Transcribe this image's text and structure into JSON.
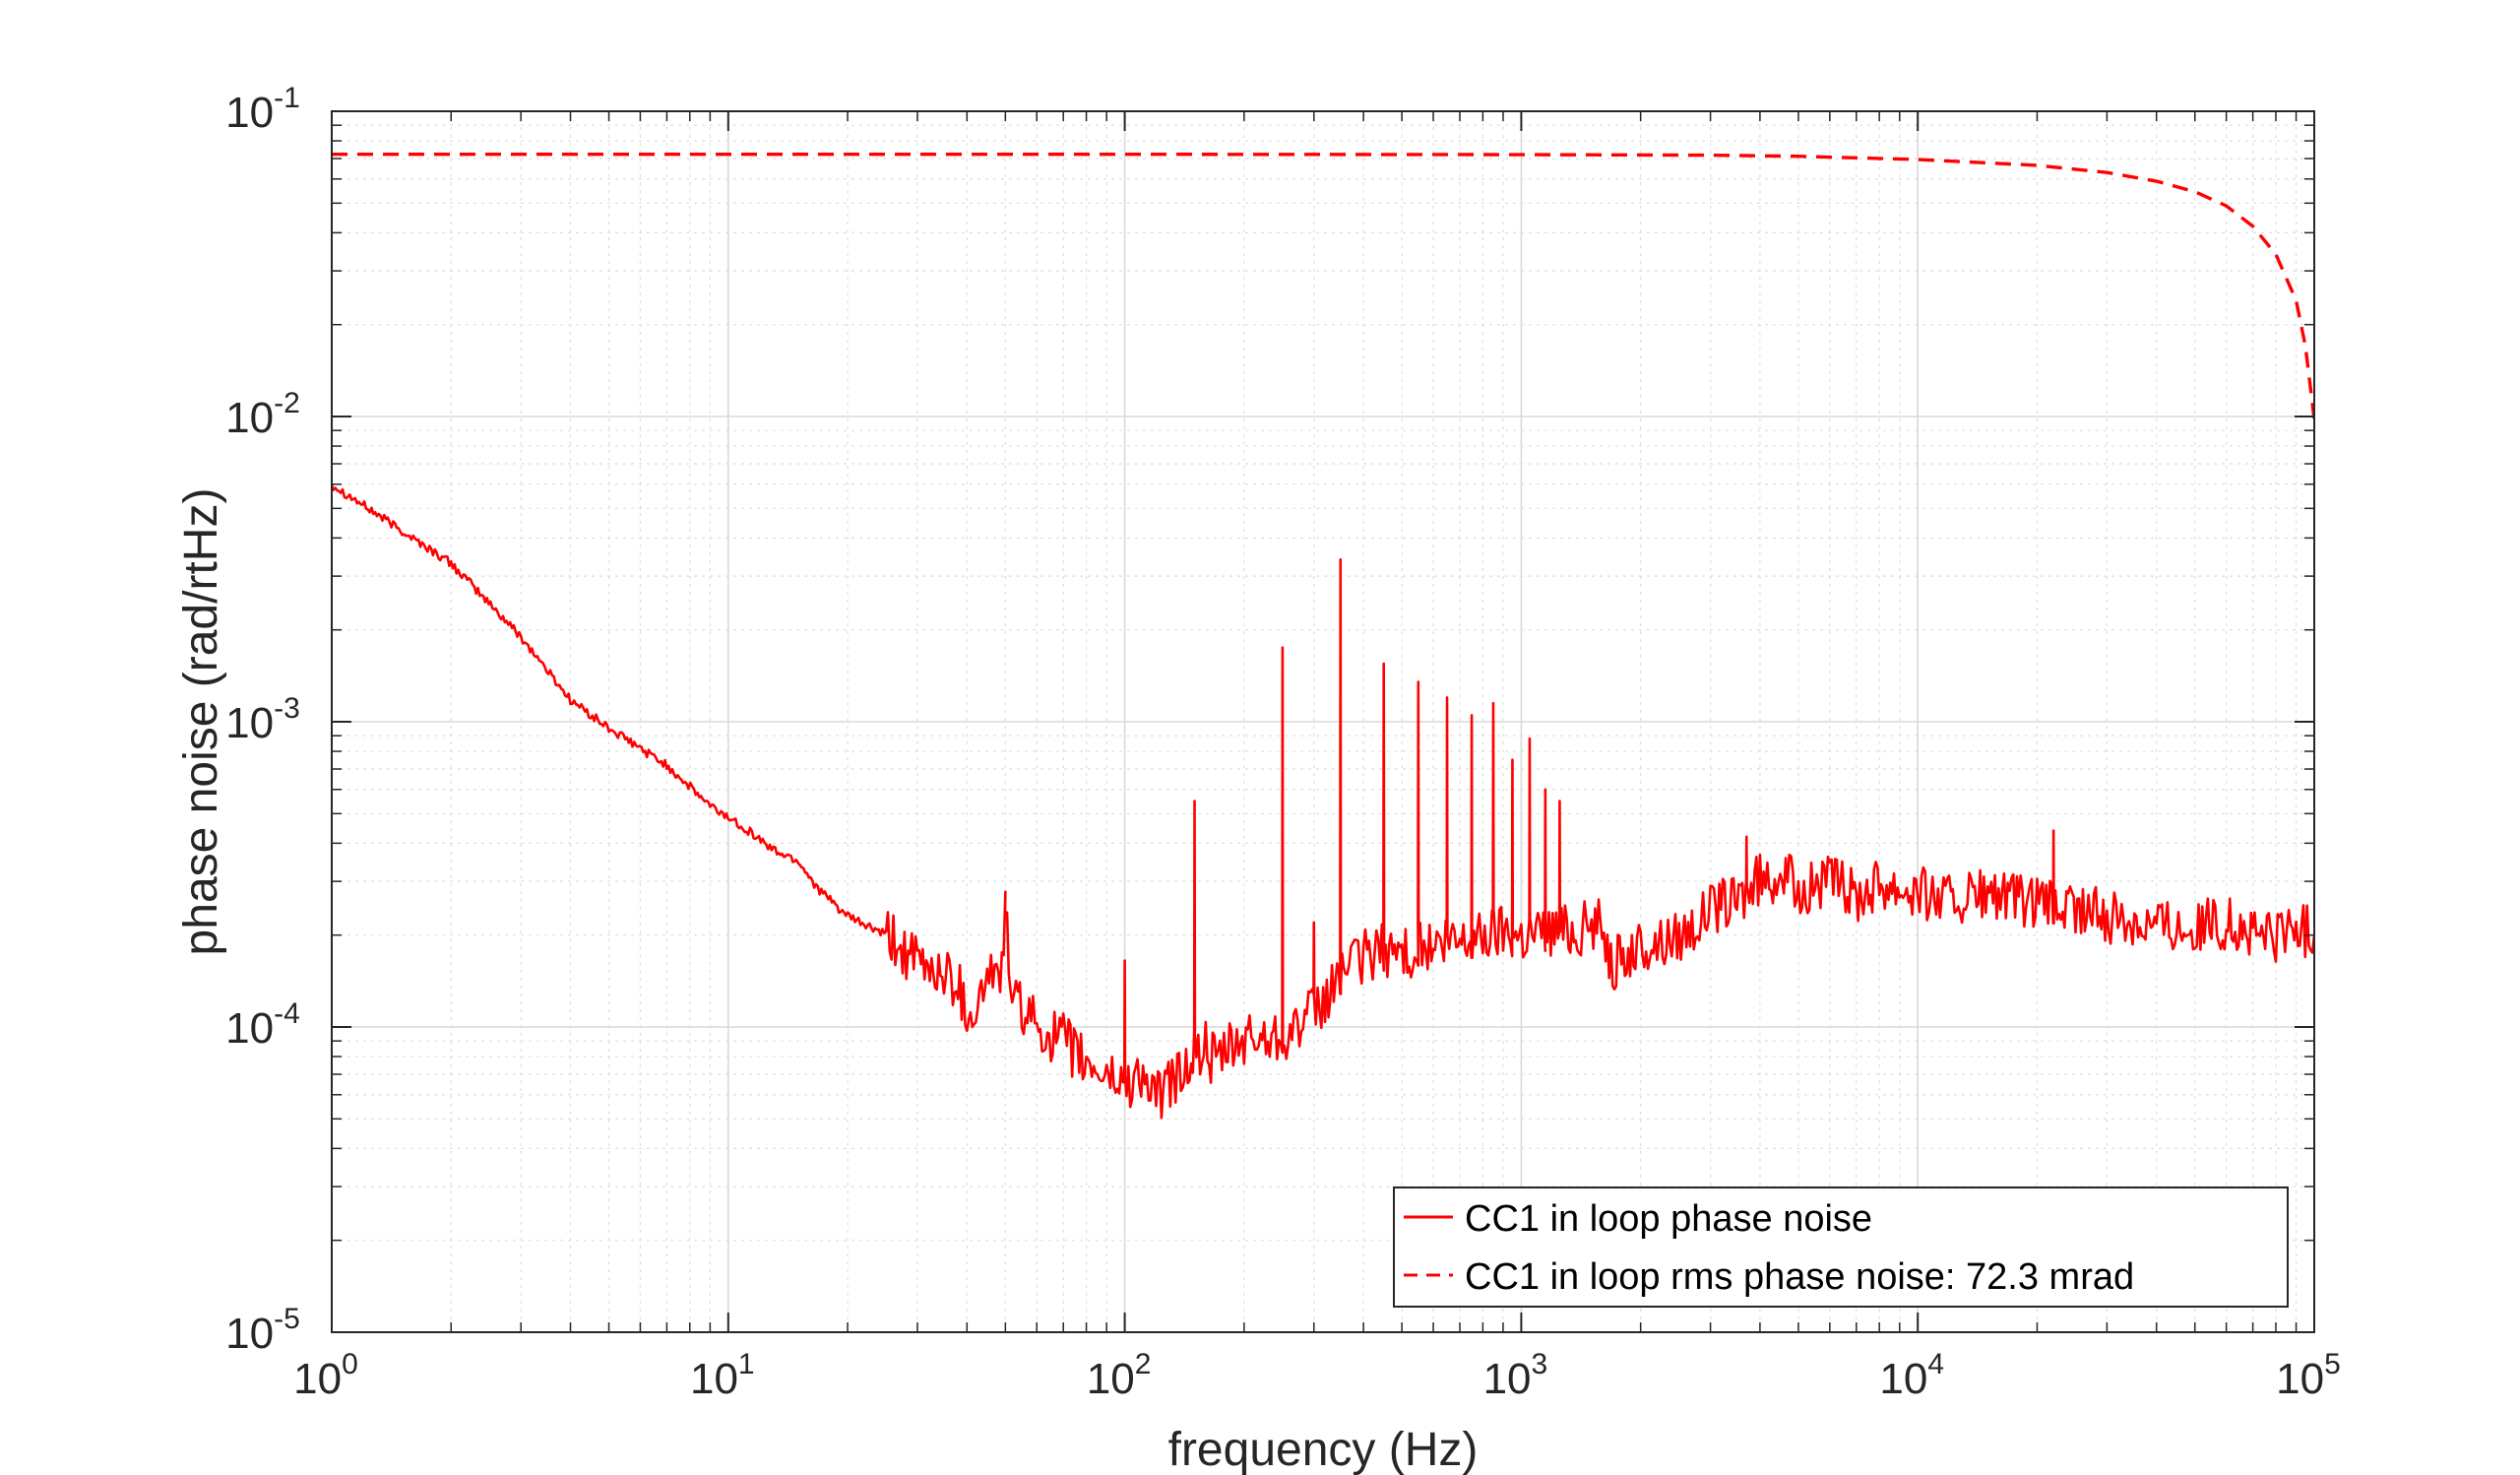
{
  "chart_data": {
    "type": "line",
    "x_scale": "log",
    "y_scale": "log",
    "xlim": [
      1,
      100000
    ],
    "ylim": [
      1e-05,
      0.1
    ],
    "xlabel": "frequency (Hz)",
    "ylabel": "phase noise (rad/rtHz)",
    "x_ticks": [
      {
        "base": "10",
        "exp": "0",
        "value": 1
      },
      {
        "base": "10",
        "exp": "1",
        "value": 10
      },
      {
        "base": "10",
        "exp": "2",
        "value": 100
      },
      {
        "base": "10",
        "exp": "3",
        "value": 1000
      },
      {
        "base": "10",
        "exp": "4",
        "value": 10000
      },
      {
        "base": "10",
        "exp": "5",
        "value": 100000
      }
    ],
    "y_ticks": [
      {
        "base": "10",
        "exp": "-1",
        "value": 0.1
      },
      {
        "base": "10",
        "exp": "-2",
        "value": 0.01
      },
      {
        "base": "10",
        "exp": "-3",
        "value": 0.001
      },
      {
        "base": "10",
        "exp": "-4",
        "value": 0.0001
      },
      {
        "base": "10",
        "exp": "-5",
        "value": 1e-05
      }
    ],
    "grid": true,
    "minor_grid": true,
    "legend_position": "bottom-right",
    "series": [
      {
        "name": "CC1 in loop phase noise",
        "color": "#ff0000",
        "style": "solid",
        "x": [
          1,
          2,
          3,
          4,
          5,
          7,
          9,
          11,
          13,
          15,
          17,
          20,
          25,
          30,
          35,
          38,
          40,
          43,
          46,
          48,
          50,
          52,
          55,
          60,
          70,
          80,
          90,
          100,
          110,
          120,
          140,
          150,
          160,
          170,
          180,
          200,
          220,
          250,
          270,
          300,
          320,
          340,
          350,
          360,
          380,
          400,
          450,
          500,
          550,
          600,
          700,
          800,
          900,
          1000,
          1200,
          1400,
          1600,
          1700,
          2000,
          2500,
          3000,
          3500,
          4000,
          4500,
          5000,
          6000,
          7000,
          8000,
          10000,
          12000,
          15000,
          20000,
          25000,
          30000,
          40000,
          50000,
          60000,
          70000,
          80000,
          90000,
          100000
        ],
        "y": [
          0.006,
          0.0033,
          0.0019,
          0.00118,
          0.00095,
          0.00072,
          0.00053,
          0.00045,
          0.00038,
          0.00035,
          0.00028,
          0.00023,
          0.0002,
          0.00016,
          0.00015,
          0.00014,
          0.00011,
          0.00012,
          0.00016,
          0.00013,
          0.00024,
          0.00012,
          0.000115,
          0.0001,
          9e-05,
          7.5e-05,
          7e-05,
          6.5e-05,
          7e-05,
          5.8e-05,
          7.2e-05,
          8e-05,
          8.5e-05,
          7.5e-05,
          8.2e-05,
          9e-05,
          9.2e-05,
          9.5e-05,
          0.0001,
          0.00011,
          0.00012,
          0.00014,
          0.000155,
          0.00016,
          0.00016,
          0.00017,
          0.00018,
          0.000175,
          0.00018,
          0.00018,
          0.00019,
          0.0002,
          0.00021,
          0.0002,
          0.00021,
          0.00021,
          0.00022,
          0.00016,
          0.00018,
          0.0002,
          0.00024,
          0.00026,
          0.0003,
          0.00032,
          0.00028,
          0.0003,
          0.00027,
          0.0003,
          0.00028,
          0.00026,
          0.00027,
          0.00025,
          0.00024,
          0.00023,
          0.00022,
          0.00021,
          0.00022,
          0.0002,
          0.0002,
          0.00021,
          0.0002
        ],
        "peaks": [
          {
            "x": 50,
            "y": 0.00024
          },
          {
            "x": 100,
            "y": 0.000165
          },
          {
            "x": 150,
            "y": 0.00055
          },
          {
            "x": 250,
            "y": 0.00175
          },
          {
            "x": 300,
            "y": 0.00022
          },
          {
            "x": 350,
            "y": 0.0034
          },
          {
            "x": 450,
            "y": 0.00155
          },
          {
            "x": 550,
            "y": 0.00135
          },
          {
            "x": 650,
            "y": 0.0012
          },
          {
            "x": 750,
            "y": 0.00105
          },
          {
            "x": 850,
            "y": 0.00115
          },
          {
            "x": 950,
            "y": 0.00075
          },
          {
            "x": 1050,
            "y": 0.00088
          },
          {
            "x": 1150,
            "y": 0.0006
          },
          {
            "x": 1250,
            "y": 0.00055
          },
          {
            "x": 3700,
            "y": 0.00042
          },
          {
            "x": 22000,
            "y": 0.00044
          }
        ]
      },
      {
        "name": "CC1 in loop rms phase noise: 72.3 mrad",
        "color": "#ff0000",
        "style": "dashed",
        "x": [
          1,
          10,
          100,
          1000,
          3000,
          5000,
          10000,
          20000,
          30000,
          40000,
          50000,
          60000,
          70000,
          80000,
          90000,
          95000,
          100000
        ],
        "y": [
          0.0723,
          0.0723,
          0.0723,
          0.0721,
          0.0718,
          0.0712,
          0.0695,
          0.0665,
          0.063,
          0.059,
          0.0545,
          0.049,
          0.042,
          0.034,
          0.024,
          0.017,
          0.0098
        ]
      }
    ]
  }
}
